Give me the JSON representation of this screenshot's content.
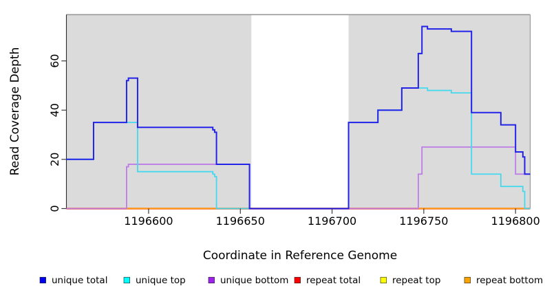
{
  "chart_data": {
    "type": "line",
    "subtype": "step-after-coverage-plot",
    "xlabel": "Coordinate in Reference Genome",
    "ylabel": "Read Coverage Depth",
    "xlim": [
      1196555.2,
      1196808
    ],
    "ylim": [
      0,
      78.8
    ],
    "x_ticks": [
      1196600,
      1196650,
      1196700,
      1196750,
      1196800
    ],
    "y_ticks": [
      0,
      20,
      40,
      60
    ],
    "grid": "off",
    "legend_position": "bottom",
    "shaded_regions": [
      [
        1196555.2,
        1196656
      ],
      [
        1196709,
        1196808
      ]
    ],
    "shade_color": "#dbdbdb",
    "border_top_color": "#999999",
    "axis_color": "#2b2b2b",
    "series": [
      {
        "name": "unique total",
        "color": "#2222e8",
        "legend_color": "#0000f0",
        "points": [
          [
            1196555.2,
            20
          ],
          [
            1196570,
            35
          ],
          [
            1196588,
            52
          ],
          [
            1196589,
            53
          ],
          [
            1196594,
            33
          ],
          [
            1196635,
            32
          ],
          [
            1196636,
            31
          ],
          [
            1196637,
            18
          ],
          [
            1196655,
            0
          ],
          [
            1196709,
            35
          ],
          [
            1196725,
            40
          ],
          [
            1196738,
            49
          ],
          [
            1196747,
            63
          ],
          [
            1196749,
            74
          ],
          [
            1196752,
            73
          ],
          [
            1196765,
            72
          ],
          [
            1196776,
            39
          ],
          [
            1196792,
            34
          ],
          [
            1196800,
            23
          ],
          [
            1196804,
            21
          ],
          [
            1196805,
            14
          ]
        ]
      },
      {
        "name": "unique top",
        "color": "#44d9ee",
        "legend_color": "#00ffff",
        "points": [
          [
            1196555.2,
            20
          ],
          [
            1196570,
            35
          ],
          [
            1196594,
            15
          ],
          [
            1196635,
            14
          ],
          [
            1196636,
            13
          ],
          [
            1196637,
            0
          ],
          [
            1196709,
            35
          ],
          [
            1196725,
            40
          ],
          [
            1196738,
            49
          ],
          [
            1196752,
            48
          ],
          [
            1196765,
            47
          ],
          [
            1196776,
            14
          ],
          [
            1196792,
            9
          ],
          [
            1196804,
            7
          ],
          [
            1196805,
            0
          ]
        ]
      },
      {
        "name": "unique bottom",
        "color": "#bd7ce6",
        "legend_color": "#a020f0",
        "points": [
          [
            1196555.2,
            0
          ],
          [
            1196588,
            17
          ],
          [
            1196589,
            18
          ],
          [
            1196655,
            0
          ],
          [
            1196747,
            14
          ],
          [
            1196749,
            25
          ],
          [
            1196800,
            14
          ]
        ]
      },
      {
        "name": "repeat total",
        "color": "#e8365f",
        "legend_color": "#ff0000",
        "points": [
          [
            1196555.2,
            0
          ]
        ]
      },
      {
        "name": "repeat top",
        "color": "#ffee00",
        "legend_color": "#ffff00",
        "points": [
          [
            1196555.2,
            0
          ]
        ]
      },
      {
        "name": "repeat bottom",
        "color": "#ff9d1e",
        "legend_color": "#ffa500",
        "points": [
          [
            1196555.2,
            0
          ]
        ]
      }
    ]
  }
}
